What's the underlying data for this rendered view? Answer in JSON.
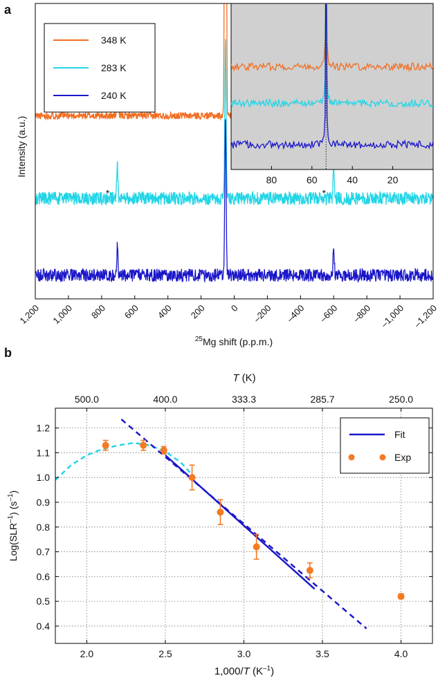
{
  "panel_a_letter": "a",
  "panel_b_letter": "b",
  "chart_data": [
    {
      "type": "line",
      "panel": "a",
      "xlabel_sup": "25",
      "xlabel_main": "Mg shift (p.p.m.)",
      "ylabel": "Intensity (a.u.)",
      "xlim": [
        1200,
        -1200
      ],
      "x_ticks": [
        {
          "v": 1200,
          "label": "1,200"
        },
        {
          "v": 1000,
          "label": "1,000"
        },
        {
          "v": 800,
          "label": "800"
        },
        {
          "v": 600,
          "label": "600"
        },
        {
          "v": 400,
          "label": "400"
        },
        {
          "v": 200,
          "label": "200"
        },
        {
          "v": 0,
          "label": "0"
        },
        {
          "v": -200,
          "label": "–200"
        },
        {
          "v": -400,
          "label": "–400"
        },
        {
          "v": -600,
          "label": "–600"
        },
        {
          "v": -800,
          "label": "–800"
        },
        {
          "v": -1000,
          "label": "–1,000"
        },
        {
          "v": -1200,
          "label": "–1,200"
        }
      ],
      "main_peak_ppm": 53,
      "sideband_ppm": [
        705,
        -600
      ],
      "sideband_marker": "*",
      "series": [
        {
          "name": "348 K",
          "color": "#f26d21",
          "baseline": 0.62,
          "peak_height": 3.2,
          "sideband_height": 0.14,
          "noise": 0.012
        },
        {
          "name": "283 K",
          "color": "#22d5e6",
          "baseline": 0.34,
          "peak_height": 0.55,
          "sideband_height": 0.11,
          "noise": 0.022
        },
        {
          "name": "240 K",
          "color": "#1a16c9",
          "baseline": 0.08,
          "peak_height": 0.55,
          "sideband_height": 0.1,
          "noise": 0.022
        }
      ],
      "inset": {
        "background": "#d0d0d0",
        "xlim": [
          100,
          0
        ],
        "x_ticks": [
          {
            "v": 80,
            "label": "80"
          },
          {
            "v": 60,
            "label": "60"
          },
          {
            "v": 40,
            "label": "40"
          },
          {
            "v": 20,
            "label": "20"
          }
        ],
        "reference_line_ppm": 53
      },
      "legend_position": "top-left"
    },
    {
      "type": "scatter",
      "panel": "b",
      "xlabel_main": "1,000/",
      "xlabel_italic": "T",
      "xlabel_unit": " (K",
      "xlabel_sup": "–1",
      "xlabel_close": ")",
      "top_xlabel_italic": "T",
      "top_xlabel_unit": " (K)",
      "ylabel_pre": "Log(SLR",
      "ylabel_sup1": "–1",
      "ylabel_mid": ") (s",
      "ylabel_sup2": "–1",
      "ylabel_close": ")",
      "xlim": [
        1.8,
        4.2
      ],
      "ylim": [
        0.33,
        1.28
      ],
      "x_ticks": [
        {
          "v": 2.0,
          "label": "2.0"
        },
        {
          "v": 2.5,
          "label": "2.5"
        },
        {
          "v": 3.0,
          "label": "3.0"
        },
        {
          "v": 3.5,
          "label": "3.5"
        },
        {
          "v": 4.0,
          "label": "4.0"
        }
      ],
      "top_ticks": [
        {
          "v": 2.0,
          "label": "500.0"
        },
        {
          "v": 2.5,
          "label": "400.0"
        },
        {
          "v": 3.0,
          "label": "333.3"
        },
        {
          "v": 3.5,
          "label": "285.7"
        },
        {
          "v": 4.0,
          "label": "250.0"
        }
      ],
      "y_ticks": [
        {
          "v": 0.4,
          "label": "0.4"
        },
        {
          "v": 0.5,
          "label": "0.5"
        },
        {
          "v": 0.6,
          "label": "0.6"
        },
        {
          "v": 0.7,
          "label": "0.7"
        },
        {
          "v": 0.8,
          "label": "0.8"
        },
        {
          "v": 0.9,
          "label": "0.9"
        },
        {
          "v": 1.0,
          "label": "1.0"
        },
        {
          "v": 1.1,
          "label": "1.1"
        },
        {
          "v": 1.2,
          "label": "1.2"
        }
      ],
      "grid": true,
      "legend_position": "top-right",
      "fit": {
        "name": "Fit",
        "color": "#1a16c9",
        "solid": [
          [
            2.5,
            1.09
          ],
          [
            3.45,
            0.55
          ]
        ],
        "dashed": [
          [
            2.22,
            1.235
          ],
          [
            3.78,
            0.39
          ]
        ]
      },
      "curve": {
        "color": "#22d5e6",
        "points": [
          [
            1.8,
            0.99
          ],
          [
            1.9,
            1.05
          ],
          [
            2.0,
            1.09
          ],
          [
            2.1,
            1.115
          ],
          [
            2.2,
            1.13
          ],
          [
            2.3,
            1.14
          ],
          [
            2.4,
            1.13
          ],
          [
            2.5,
            1.105
          ],
          [
            2.6,
            1.06
          ],
          [
            2.7,
            0.99
          ]
        ]
      },
      "exp": {
        "name": "Exp",
        "color": "#f47a23",
        "points": [
          {
            "x": 2.12,
            "y": 1.13,
            "err": 0.02
          },
          {
            "x": 2.36,
            "y": 1.13,
            "err": 0.02
          },
          {
            "x": 2.49,
            "y": 1.11,
            "err": 0.015
          },
          {
            "x": 2.67,
            "y": 1.0,
            "err": 0.05
          },
          {
            "x": 2.85,
            "y": 0.86,
            "err": 0.05
          },
          {
            "x": 3.08,
            "y": 0.72,
            "err": 0.05
          },
          {
            "x": 3.42,
            "y": 0.625,
            "err": 0.03
          },
          {
            "x": 4.0,
            "y": 0.52,
            "err": 0.01
          }
        ]
      }
    }
  ]
}
